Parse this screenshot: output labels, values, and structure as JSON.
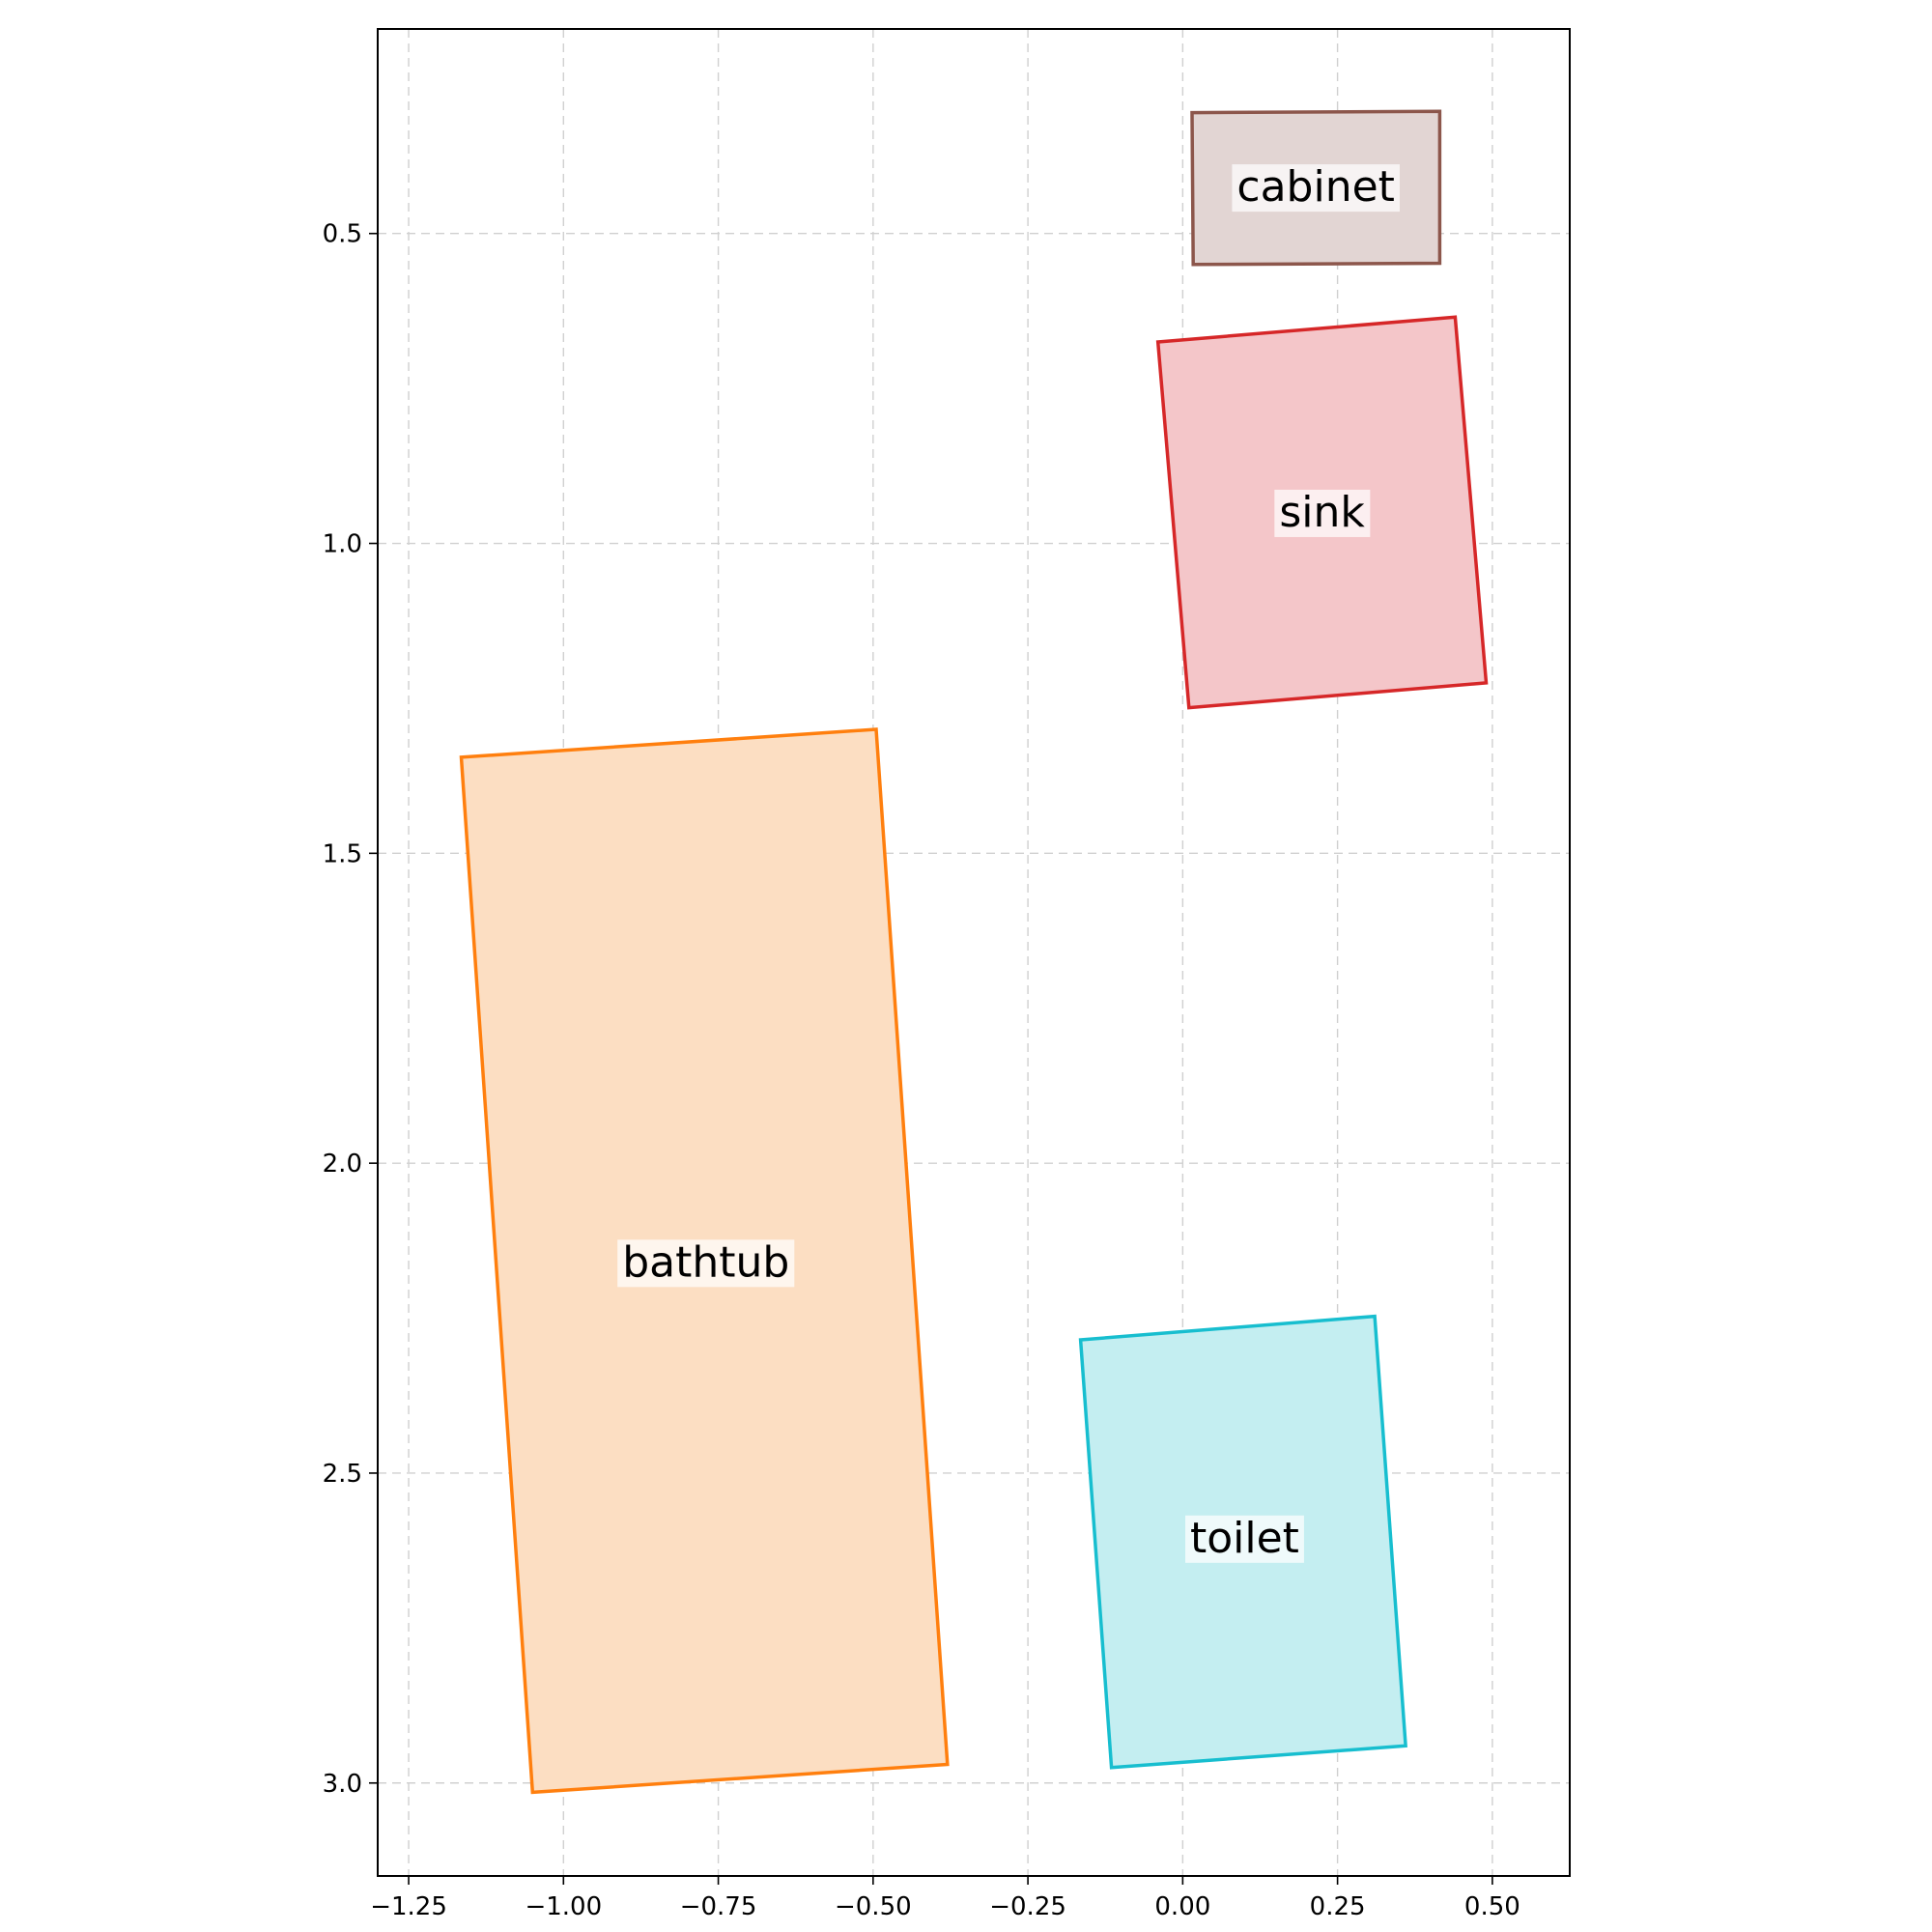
{
  "chart_data": {
    "type": "floor-plan",
    "title": "",
    "xlabel": "",
    "ylabel": "",
    "xlim": [
      -1.3,
      0.625
    ],
    "ylim": [
      3.15,
      0.17
    ],
    "y_inverted": true,
    "grid": true,
    "xticks": [
      -1.25,
      -1.0,
      -0.75,
      -0.5,
      -0.25,
      0.0,
      0.25,
      0.5
    ],
    "xtick_labels": [
      "−1.25",
      "−1.00",
      "−0.75",
      "−0.50",
      "−0.25",
      "0.00",
      "0.25",
      "0.50"
    ],
    "yticks": [
      0.5,
      1.0,
      1.5,
      2.0,
      2.5,
      3.0
    ],
    "ytick_labels": [
      "0.5",
      "1.0",
      "1.5",
      "2.0",
      "2.5",
      "3.0"
    ],
    "objects": [
      {
        "name": "cabinet",
        "color": "#8c564b",
        "fill": "#e2d5d3",
        "polygon": [
          [
            0.015,
            0.305
          ],
          [
            0.415,
            0.303
          ],
          [
            0.415,
            0.548
          ],
          [
            0.017,
            0.55
          ]
        ],
        "label_pos": [
          0.215,
          0.425
        ]
      },
      {
        "name": "sink",
        "color": "#d62728",
        "fill": "#f4c6c9",
        "polygon": [
          [
            -0.04,
            0.675
          ],
          [
            0.44,
            0.635
          ],
          [
            0.49,
            1.225
          ],
          [
            0.01,
            1.265
          ]
        ],
        "label_pos": [
          0.225,
          0.95
        ]
      },
      {
        "name": "bathtub",
        "color": "#ff7f0e",
        "fill": "#fcdec2",
        "polygon": [
          [
            -1.165,
            1.345
          ],
          [
            -0.495,
            1.3
          ],
          [
            -0.38,
            2.97
          ],
          [
            -1.05,
            3.015
          ]
        ],
        "label_pos": [
          -0.77,
          2.16
        ]
      },
      {
        "name": "toilet",
        "color": "#17becf",
        "fill": "#c4eef1",
        "polygon": [
          [
            -0.165,
            2.285
          ],
          [
            0.31,
            2.247
          ],
          [
            0.36,
            2.94
          ],
          [
            -0.115,
            2.975
          ]
        ],
        "label_pos": [
          0.1,
          2.605
        ]
      }
    ]
  }
}
